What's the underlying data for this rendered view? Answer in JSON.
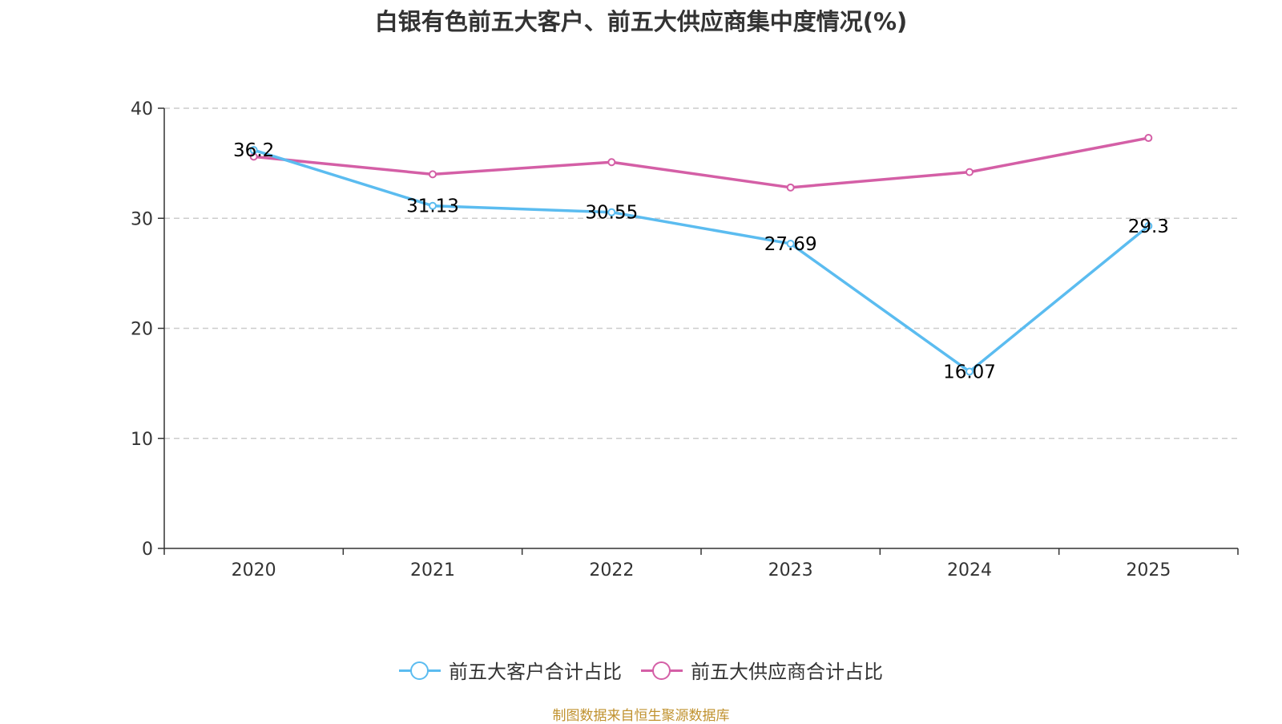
{
  "chart_data": {
    "type": "line",
    "title": "白银有色前五大客户、前五大供应商集中度情况(%)",
    "categories": [
      "2020",
      "2021",
      "2022",
      "2023",
      "2024",
      "2025"
    ],
    "series": [
      {
        "name": "前五大客户合计占比",
        "color": "#5bbcf0",
        "values": [
          36.2,
          31.13,
          30.55,
          27.69,
          16.07,
          29.3
        ],
        "show_labels": true
      },
      {
        "name": "前五大供应商合计占比",
        "color": "#d45fa6",
        "values": [
          35.6,
          34.0,
          35.1,
          32.8,
          34.2,
          37.3
        ],
        "show_labels": false
      }
    ],
    "ylim": [
      0,
      40
    ],
    "yticks": [
      0,
      10,
      20,
      30,
      40
    ],
    "grid": true,
    "legend_position": "bottom-center",
    "xlabel": "",
    "ylabel": ""
  },
  "source_note": "制图数据来自恒生聚源数据库"
}
